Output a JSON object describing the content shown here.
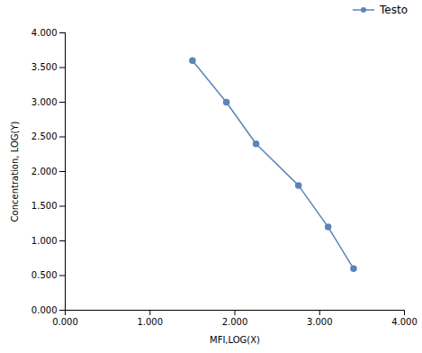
{
  "chart_data": {
    "type": "line",
    "xlabel": "MFI,LOG(X)",
    "ylabel": "Concentration, LOG(Y)",
    "x": [
      1.5,
      1.9,
      2.25,
      2.75,
      3.1,
      3.4
    ],
    "series": [
      {
        "name": "Testo",
        "color": "#5b84b8",
        "marker": "circle",
        "values": [
          3.6,
          3.0,
          2.4,
          1.8,
          1.2,
          0.6
        ]
      }
    ],
    "xlim": [
      0.0,
      4.0
    ],
    "ylim": [
      0.0,
      4.0
    ],
    "xticks": [
      {
        "value": 0,
        "label": "0.000"
      },
      {
        "value": 1,
        "label": "1.000"
      },
      {
        "value": 2,
        "label": "2.000"
      },
      {
        "value": 3,
        "label": "3.000"
      },
      {
        "value": 4,
        "label": "4.000"
      }
    ],
    "yticks": [
      {
        "value": 0,
        "label": "0.000"
      },
      {
        "value": 0.5,
        "label": "0.500"
      },
      {
        "value": 1,
        "label": "1.000"
      },
      {
        "value": 1.5,
        "label": "1.500"
      },
      {
        "value": 2,
        "label": "2.000"
      },
      {
        "value": 2.5,
        "label": "2.500"
      },
      {
        "value": 3,
        "label": "3.000"
      },
      {
        "value": 3.5,
        "label": "3.500"
      },
      {
        "value": 4,
        "label": "4.000"
      }
    ],
    "grid": false,
    "legend": "upper right"
  }
}
